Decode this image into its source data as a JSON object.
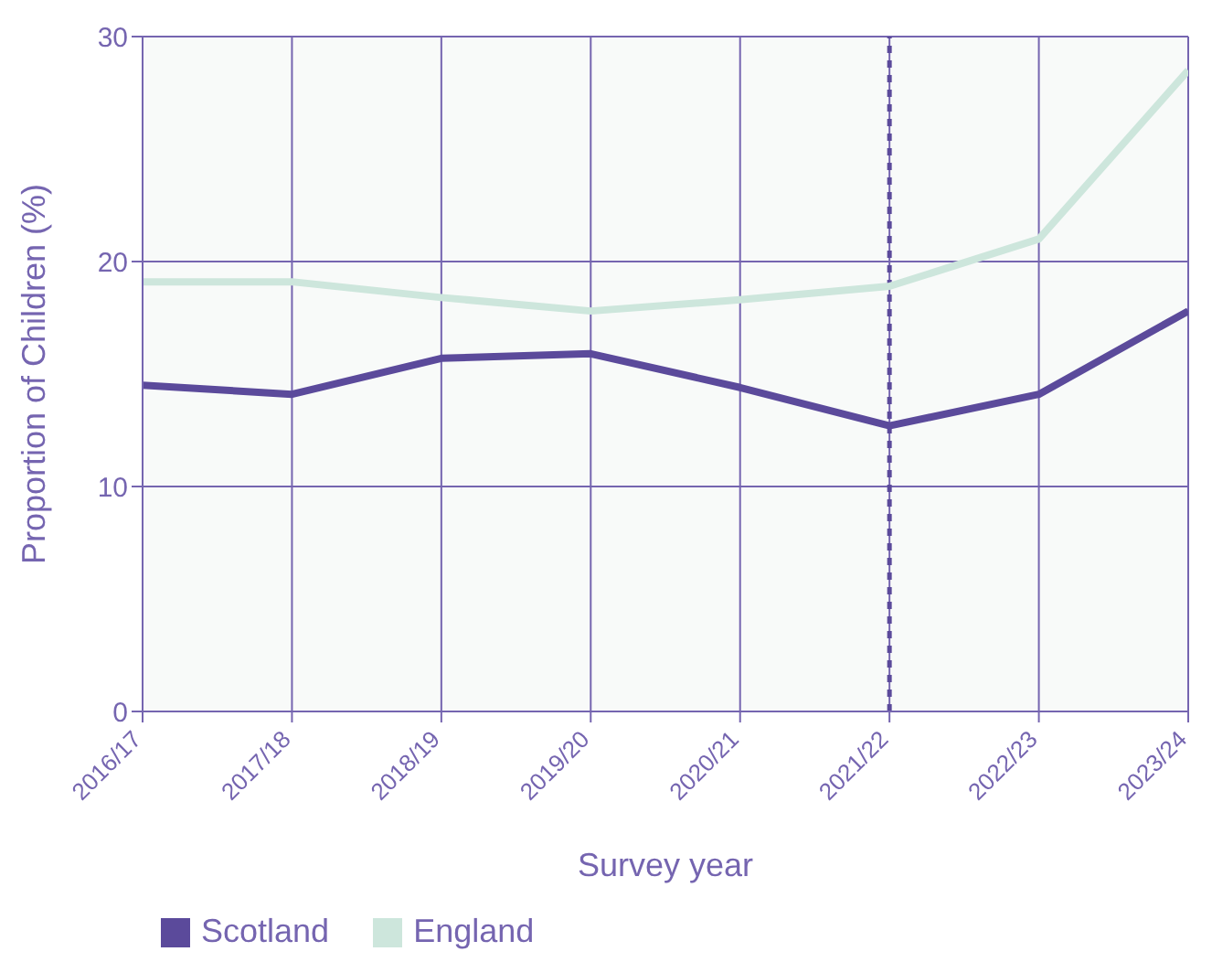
{
  "chart_data": {
    "type": "line",
    "xlabel": "Survey year",
    "ylabel": "Proportion of Children (%)",
    "categories": [
      "2016/17",
      "2017/18",
      "2018/19",
      "2019/20",
      "2020/21",
      "2021/22",
      "2022/23",
      "2023/24"
    ],
    "series": [
      {
        "name": "Scotland",
        "color": "#5b4a9b",
        "values": [
          14.5,
          14.1,
          15.7,
          15.9,
          14.4,
          12.7,
          14.1,
          17.8
        ]
      },
      {
        "name": "England",
        "color": "#cde6dc",
        "values": [
          19.1,
          19.1,
          18.4,
          17.8,
          18.3,
          18.9,
          21.0,
          28.5
        ]
      }
    ],
    "ylim": [
      0,
      30
    ],
    "yticks": [
      0,
      10,
      20,
      30
    ],
    "grid": true,
    "legend": "bottom",
    "marker": "none",
    "line_style": "solid",
    "ref_lines": [
      {
        "axis": "x",
        "value": "2021/22",
        "color": "#5b4a9b",
        "line_style": "dashed"
      }
    ]
  }
}
